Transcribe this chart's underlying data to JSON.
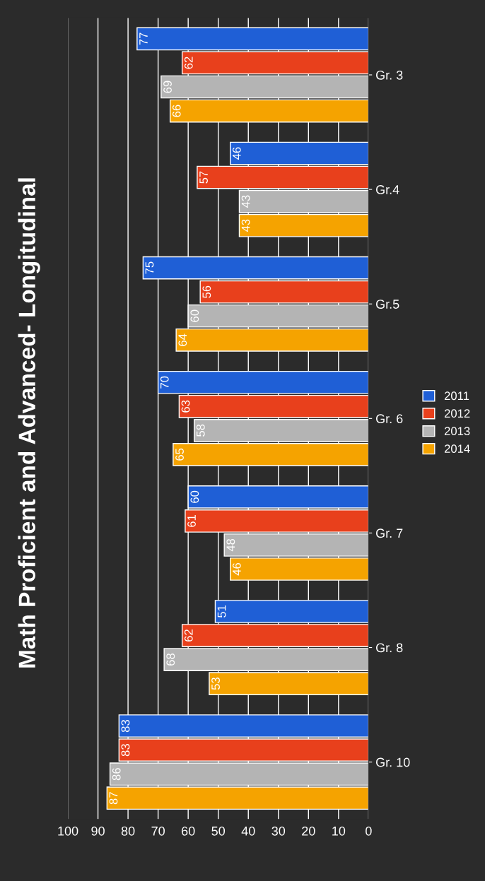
{
  "chart_data": {
    "type": "bar",
    "orientation": "horizontal",
    "title": "Math Proficient and Advanced- Longitudinal",
    "categories": [
      "Gr. 3",
      "Gr.4",
      "Gr.5",
      "Gr. 6",
      "Gr. 7",
      "Gr. 8",
      "Gr. 10"
    ],
    "series": [
      {
        "name": "2011",
        "color": "#1f5fd6",
        "values": [
          77,
          46,
          75,
          70,
          60,
          51,
          83
        ]
      },
      {
        "name": "2012",
        "color": "#e8401c",
        "values": [
          62,
          57,
          56,
          63,
          61,
          62,
          83
        ]
      },
      {
        "name": "2013",
        "color": "#b4b4b4",
        "values": [
          69,
          43,
          60,
          58,
          48,
          68,
          86
        ]
      },
      {
        "name": "2014",
        "color": "#f5a300",
        "values": [
          66,
          43,
          64,
          65,
          46,
          53,
          87
        ]
      }
    ],
    "xlim": [
      100,
      0
    ],
    "xticks": [
      100,
      90,
      80,
      70,
      60,
      50,
      40,
      30,
      20,
      10,
      0
    ],
    "grid": "x",
    "data_labels": true,
    "legend": "right"
  }
}
